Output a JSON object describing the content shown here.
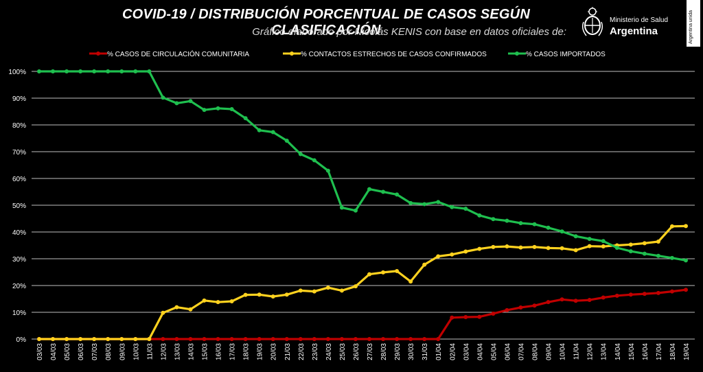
{
  "header": {
    "title": "COVID-19  /  DISTRIBUCIÓN PORCENTUAL DE CASOS SEGÚN CLASIFICACIÓN",
    "subtitle": "Gráfico elaborado por Nicolás KENIS con base en datos oficiales de:"
  },
  "logo": {
    "line1": "Ministerio de Salud",
    "line2": "Argentina",
    "icon": "argentina-coat-of-arms-icon"
  },
  "side_badge": "Argentina unida",
  "colors": {
    "background": "#000000",
    "comunitaria": "#c00000",
    "contactos": "#ffd21f",
    "importados": "#1fbf4f",
    "grid": "#ffffff"
  },
  "chart_data": {
    "type": "line",
    "title": "COVID-19  /  DISTRIBUCIÓN PORCENTUAL DE CASOS SEGÚN CLASIFICACIÓN",
    "xlabel": "",
    "ylabel": "",
    "ylim": [
      0,
      100
    ],
    "yticks": [
      "0%",
      "10%",
      "20%",
      "30%",
      "40%",
      "50%",
      "60%",
      "70%",
      "80%",
      "90%",
      "100%"
    ],
    "grid": true,
    "legend_position": "top",
    "categories": [
      "03/03",
      "04/03",
      "05/03",
      "06/03",
      "07/03",
      "08/03",
      "09/03",
      "10/03",
      "11/03",
      "12/03",
      "13/03",
      "14/03",
      "15/03",
      "16/03",
      "17/03",
      "18/03",
      "19/03",
      "20/03",
      "21/03",
      "22/03",
      "23/03",
      "24/03",
      "25/03",
      "26/03",
      "27/03",
      "28/03",
      "29/03",
      "30/03",
      "31/03",
      "01/04",
      "02/04",
      "03/04",
      "04/04",
      "05/04",
      "06/04",
      "07/04",
      "08/04",
      "09/04",
      "10/04",
      "11/04",
      "12/04",
      "13/04",
      "14/04",
      "15/04",
      "16/04",
      "17/04",
      "18/04",
      "19/04"
    ],
    "series": [
      {
        "name": "% CASOS DE CIRCULACIÓN COMUNITARIA",
        "color": "#c00000",
        "values": [
          0,
          0,
          0,
          0,
          0,
          0,
          0,
          0,
          0,
          0,
          0,
          0,
          0,
          0,
          0,
          0,
          0,
          0,
          0,
          0,
          0,
          0,
          0,
          0,
          0,
          0,
          0,
          0,
          0,
          0,
          8,
          8.2,
          8.3,
          9.5,
          10.8,
          11.8,
          12.5,
          13.8,
          14.8,
          14.3,
          14.6,
          15.5,
          16.2,
          16.6,
          16.9,
          17.2,
          17.8,
          18.4
        ]
      },
      {
        "name": "% CONTACTOS ESTRECHOS DE CASOS CONFIRMADOS",
        "color": "#ffd21f",
        "values": [
          0,
          0,
          0,
          0,
          0,
          0,
          0,
          0,
          0,
          9.8,
          11.9,
          11.1,
          14.4,
          13.8,
          14.1,
          16.5,
          16.6,
          15.9,
          16.6,
          18.1,
          17.8,
          19.2,
          18.1,
          19.7,
          24.2,
          24.9,
          25.4,
          21.5,
          27.8,
          30.9,
          31.6,
          32.7,
          33.7,
          34.4,
          34.6,
          34.2,
          34.4,
          34.0,
          33.9,
          33.2,
          34.7,
          34.6,
          35.0,
          35.3,
          35.8,
          36.4,
          42.1,
          42.2
        ]
      },
      {
        "name": "% CASOS IMPORTADOS",
        "color": "#1fbf4f",
        "values": [
          100,
          100,
          100,
          100,
          100,
          100,
          100,
          100,
          100,
          90.2,
          88.1,
          88.9,
          85.6,
          86.2,
          85.9,
          82.5,
          78.0,
          77.3,
          74.1,
          69.1,
          66.8,
          62.9,
          49.1,
          48.0,
          56.0,
          55.0,
          54.0,
          50.8,
          50.4,
          51.2,
          49.3,
          48.7,
          46.2,
          44.8,
          44.2,
          43.3,
          42.9,
          41.6,
          40.2,
          38.4,
          37.4,
          36.6,
          34.1,
          32.8,
          31.9,
          31.1,
          30.3,
          29.4
        ]
      }
    ]
  }
}
